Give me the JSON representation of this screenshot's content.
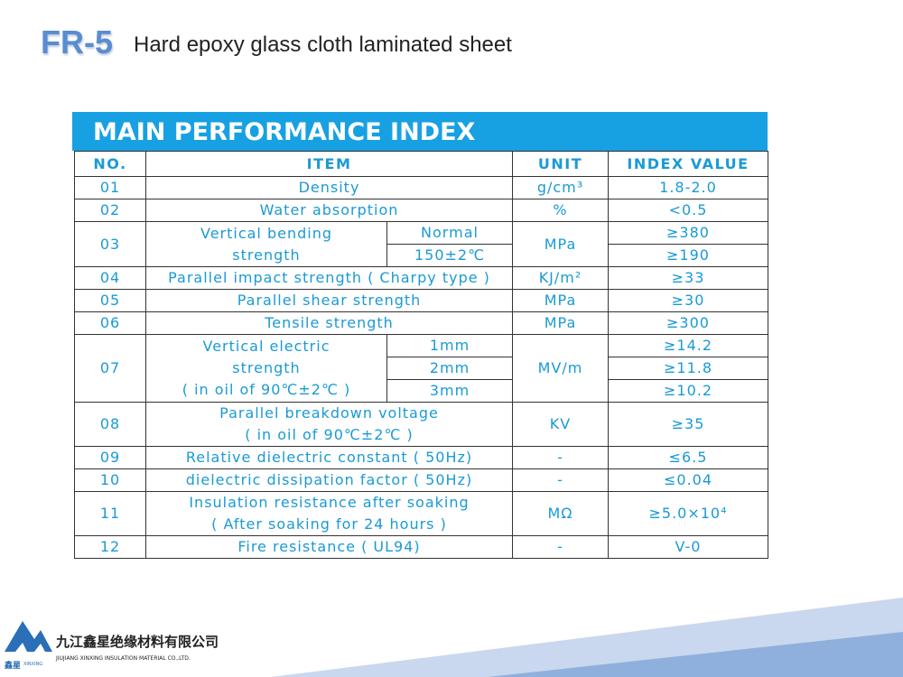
{
  "header": {
    "code": "FR-5",
    "title": "Hard epoxy glass cloth laminated sheet"
  },
  "table": {
    "banner": "MAIN PERFORMANCE INDEX",
    "columns": [
      "NO.",
      "ITEM",
      "UNIT",
      "INDEX VALUE"
    ],
    "rows": [
      {
        "no": "01",
        "item": "Density",
        "unit": "g/cm³",
        "value": "1.8-2.0"
      },
      {
        "no": "02",
        "item": "Water absorption",
        "unit": "%",
        "value": "<0.5"
      },
      {
        "no": "03",
        "item": [
          "Vertical bending",
          "strength"
        ],
        "conditions": [
          "Normal",
          "150±2℃"
        ],
        "unit": "MPa",
        "values": [
          "≥380",
          "≥190"
        ]
      },
      {
        "no": "04",
        "item": "Parallel impact strength ( Charpy type )",
        "unit": "KJ/m²",
        "value": "≥33"
      },
      {
        "no": "05",
        "item": "Parallel shear strength",
        "unit": "MPa",
        "value": "≥30"
      },
      {
        "no": "06",
        "item": "Tensile strength",
        "unit": "MPa",
        "value": "≥300"
      },
      {
        "no": "07",
        "item": [
          "Vertical electric",
          "strength",
          "( in oil of 90℃±2℃ )"
        ],
        "conditions": [
          "1mm",
          "2mm",
          "3mm"
        ],
        "unit": "MV/m",
        "values": [
          "≥14.2",
          "≥11.8",
          "≥10.2"
        ]
      },
      {
        "no": "08",
        "item": [
          "Parallel breakdown voltage",
          "( in oil of 90℃±2℃ )"
        ],
        "unit": "KV",
        "value": "≥35"
      },
      {
        "no": "09",
        "item": "Relative dielectric constant ( 50Hz)",
        "unit": "-",
        "value": "≤6.5"
      },
      {
        "no": "10",
        "item": "dielectric dissipation factor ( 50Hz)",
        "unit": "-",
        "value": "≤0.04"
      },
      {
        "no": "11",
        "item": [
          "Insulation resistance after soaking",
          "( After soaking for 24 hours )"
        ],
        "unit": "MΩ",
        "value": "≥5.0×10⁴"
      },
      {
        "no": "12",
        "item": "Fire resistance ( UL94)",
        "unit": "-",
        "value": "V-0"
      }
    ]
  },
  "footer": {
    "logo_cn": "鑫星",
    "logo_en": "XINXING",
    "company_cn": "九江鑫星绝缘材料有限公司",
    "company_en": "JIUJIANG XINXING INSULATION MATERIAL CO.,LTD."
  }
}
